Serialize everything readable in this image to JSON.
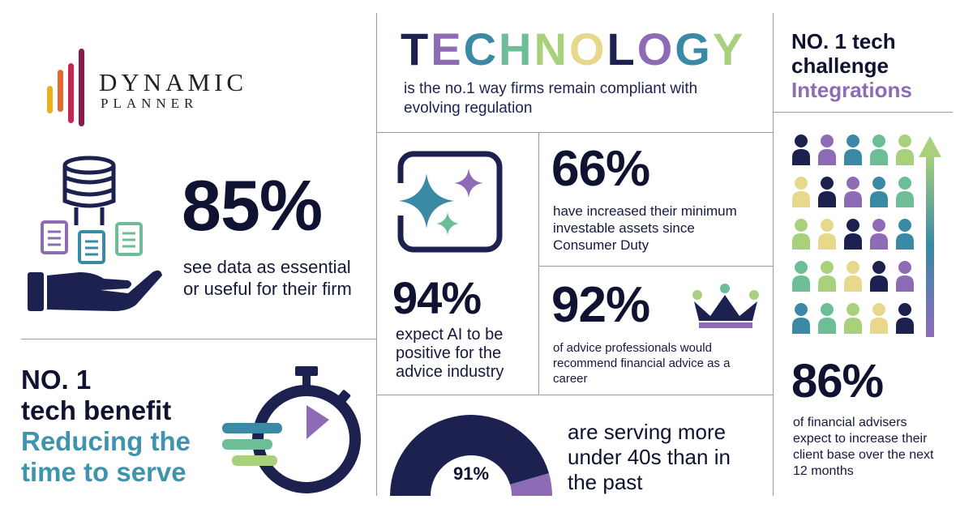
{
  "brand": {
    "line1": "DYNAMIC",
    "line2": "PLANNER",
    "bar_colors": [
      "#e9b21c",
      "#e26a2c",
      "#c72652",
      "#8b1a4e"
    ]
  },
  "technology": {
    "letters": [
      {
        "ch": "T",
        "color": "#1d2150"
      },
      {
        "ch": "E",
        "color": "#8e6bb5"
      },
      {
        "ch": "C",
        "color": "#3a8aa6"
      },
      {
        "ch": "H",
        "color": "#6dbd96"
      },
      {
        "ch": "N",
        "color": "#a9d17c"
      },
      {
        "ch": "O",
        "color": "#e7d88b"
      },
      {
        "ch": "L",
        "color": "#1d2150"
      },
      {
        "ch": "O",
        "color": "#8e6bb5"
      },
      {
        "ch": "G",
        "color": "#3a8aa6"
      },
      {
        "ch": "Y",
        "color": "#a9d17c"
      }
    ],
    "subtitle": "is the no.1 way firms remain compliant with evolving regulation"
  },
  "challenge": {
    "line1": "NO. 1 tech",
    "line2": "challenge",
    "highlight": "Integrations"
  },
  "stat_85": {
    "value": "85%",
    "text": "see data as essential or useful for their firm"
  },
  "stat_66": {
    "value": "66%",
    "text": "have increased their minimum investable assets since Consumer Duty"
  },
  "stat_94": {
    "value": "94%",
    "text": "expect AI to be positive for the advice industry"
  },
  "stat_92": {
    "value": "92%",
    "text": "of advice professionals would recommend financial advice as a career"
  },
  "stat_86": {
    "value": "86%",
    "text": "of financial advisers expect to increase their client base over the next 12 months"
  },
  "benefit": {
    "line1": "NO. 1",
    "line2": "tech benefit",
    "highlight1": "Reducing the",
    "highlight2": "time to serve"
  },
  "under40": {
    "text": "are serving more under 40s than in the past"
  },
  "colors": {
    "navy": "#1d2150",
    "purple": "#8e6bb5",
    "teal": "#3a8aa6",
    "green": "#6dbd96",
    "lime": "#a9d17c",
    "sand": "#e7d88b",
    "accent_purple": "#8d6bb8",
    "accent_teal": "#3f93ad"
  },
  "chart_data": [
    {
      "type": "pie",
      "title": "",
      "style": "half-donut",
      "label": "91%",
      "slices": [
        {
          "name": "serving more under 40s",
          "value": 91,
          "color": "#1d2150"
        },
        {
          "name": "other",
          "value": 9,
          "color": "#8e6bb5"
        }
      ]
    }
  ]
}
